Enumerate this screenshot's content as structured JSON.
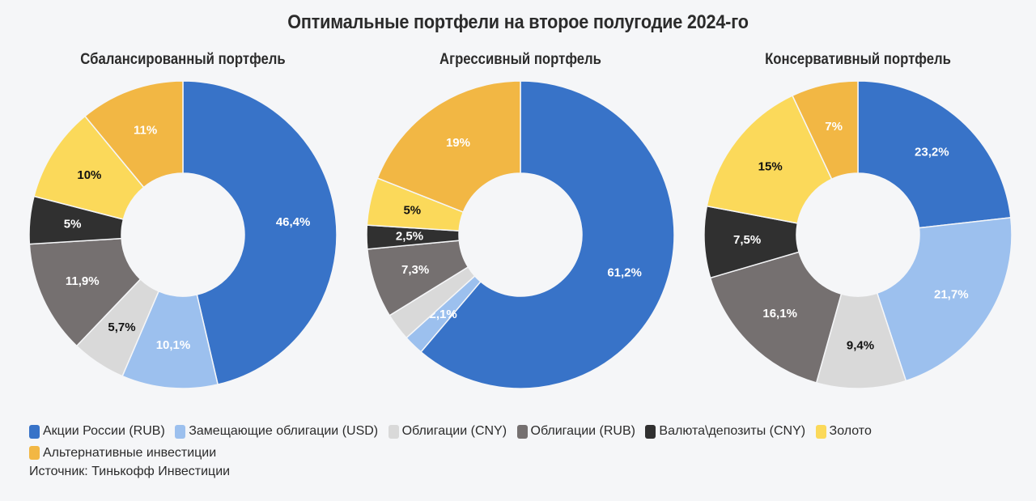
{
  "chart_data": [
    {
      "type": "pie",
      "variant": "donut",
      "title": "Сбалансированный портфель",
      "categories": [
        "Акции России (RUB)",
        "Замещающие облигации (USD)",
        "Облигации (CNY)",
        "Облигации (RUB)",
        "Валюта\\депозиты (CNY)",
        "Золото",
        "Альтернативные инвестиции"
      ],
      "values": [
        46.4,
        10.1,
        5.7,
        11.9,
        5,
        10,
        11
      ],
      "labels": [
        "46,4%",
        "10,1%",
        "5,7%",
        "11,9%",
        "5%",
        "10%",
        "11%"
      ]
    },
    {
      "type": "pie",
      "variant": "donut",
      "title": "Агрессивный портфель",
      "categories": [
        "Акции России (RUB)",
        "Замещающие облигации (USD)",
        "Облигации (CNY)",
        "Облигации (RUB)",
        "Валюта\\депозиты (CNY)",
        "Золото",
        "Альтернативные инвестиции"
      ],
      "values": [
        61.2,
        2.1,
        2.9,
        7.3,
        2.5,
        5,
        19
      ],
      "labels": [
        "61,2%",
        "2,1%",
        "",
        "7,3%",
        "2,5%",
        "5%",
        "19%"
      ]
    },
    {
      "type": "pie",
      "variant": "donut",
      "title": "Консервативный портфель",
      "categories": [
        "Акции России (RUB)",
        "Замещающие облигации (USD)",
        "Облигации (CNY)",
        "Облигации (RUB)",
        "Валюта\\депозиты (CNY)",
        "Золото",
        "Альтернативные инвестиции"
      ],
      "values": [
        23.2,
        21.7,
        9.4,
        16.1,
        7.5,
        15,
        7
      ],
      "labels": [
        "23,2%",
        "21,7%",
        "9,4%",
        "16,1%",
        "7,5%",
        "15%",
        "7%"
      ]
    }
  ],
  "header": {
    "title": "Оптимальные портфели на второе полугодие 2024-го"
  },
  "legend": {
    "placement": "bottom-left",
    "items": [
      {
        "label": "Акции России (RUB)",
        "color": "#3873c8",
        "text_color": "#ffffff"
      },
      {
        "label": "Замещающие облигации (USD)",
        "color": "#9cc0ee",
        "text_color": "#ffffff"
      },
      {
        "label": "Облигации (CNY)",
        "color": "#d9d9d9",
        "text_color": "#111111"
      },
      {
        "label": "Облигации (RUB)",
        "color": "#757070",
        "text_color": "#ffffff"
      },
      {
        "label": "Валюта\\депозиты (CNY)",
        "color": "#303030",
        "text_color": "#ffffff"
      },
      {
        "label": "Золото",
        "color": "#fbd95a",
        "text_color": "#111111"
      },
      {
        "label": "Альтернативные инвестиции",
        "color": "#f2b744",
        "text_color": "#ffffff"
      }
    ]
  },
  "footer": {
    "source": "Источник: Тинькофф Инвестиции"
  }
}
